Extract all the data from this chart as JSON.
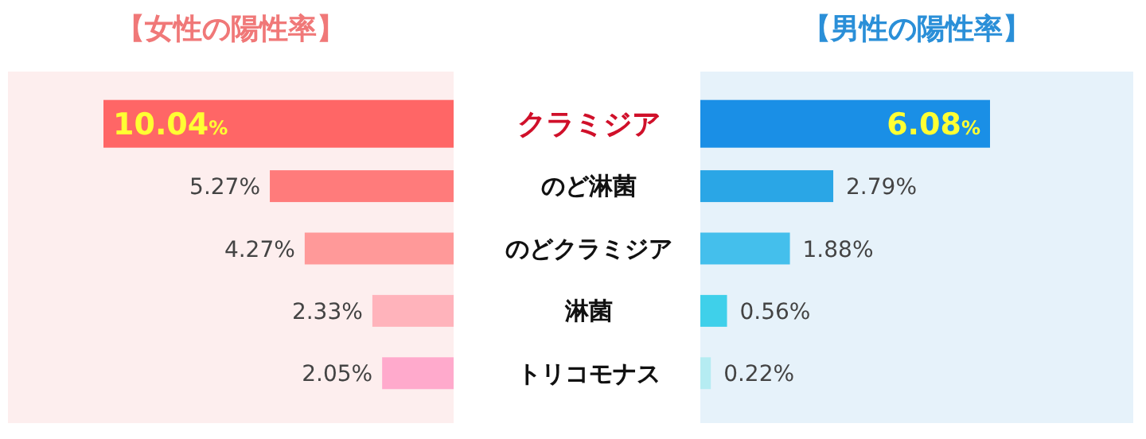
{
  "chart_data": [
    {
      "type": "bar",
      "orientation": "horizontal",
      "title": "【女性の陽性率】",
      "categories": [
        "クラミジア",
        "のど淋菌",
        "のどクラミジア",
        "淋菌",
        "トリコモナス"
      ],
      "values": [
        10.04,
        5.27,
        4.27,
        2.33,
        2.05
      ],
      "colors": [
        "#ff6666",
        "#ff7b7b",
        "#ff9999",
        "#ffb3bb",
        "#ffaacc"
      ],
      "value_labels": [
        "10.04%",
        "5.27%",
        "4.27%",
        "2.33%",
        "2.05%"
      ]
    },
    {
      "type": "bar",
      "orientation": "horizontal",
      "title": "【男性の陽性率】",
      "values": [
        6.08,
        2.79,
        1.88,
        0.56,
        0.22
      ],
      "colors": [
        "#1a8fe6",
        "#2aa6e6",
        "#44bfec",
        "#3fd0ea",
        "#b5ecf2"
      ],
      "value_labels": [
        "6.08%",
        "2.79%",
        "1.88%",
        "0.56%",
        "0.22%"
      ]
    }
  ]
}
